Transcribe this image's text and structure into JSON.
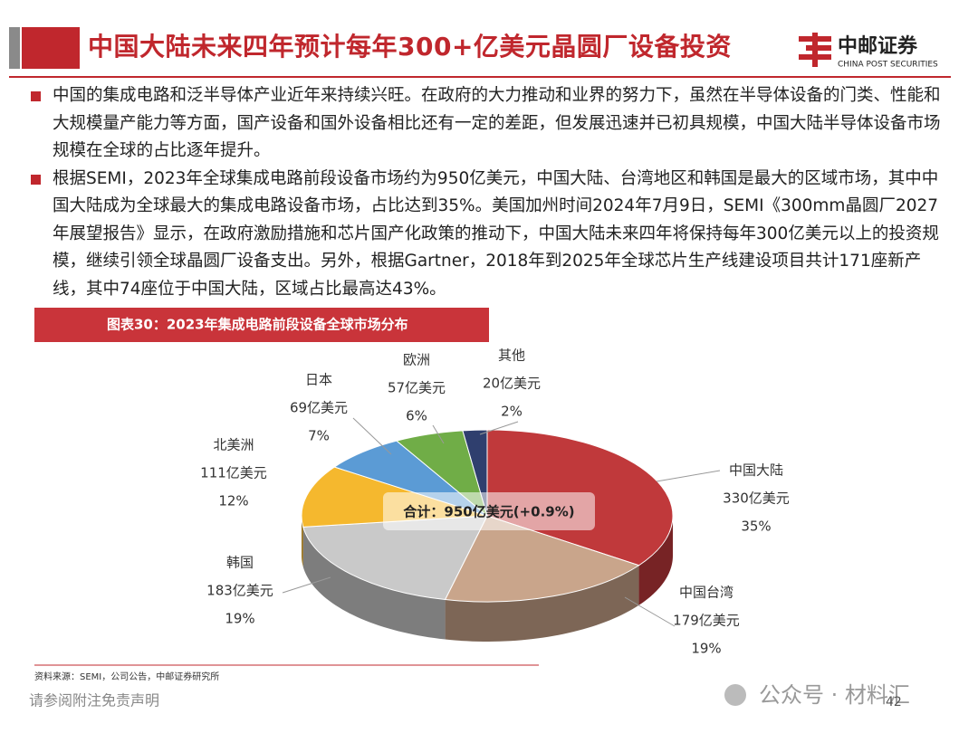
{
  "header": {
    "title": "中国大陆未来四年预计每年300+亿美元晶圆厂设备投资",
    "logo_cn": "中邮证券",
    "logo_en": "CHINA POST SECURITIES"
  },
  "bullets": [
    "中国的集成电路和泛半导体产业近年来持续兴旺。在政府的大力推动和业界的努力下，虽然在半导体设备的门类、性能和大规模量产能力等方面，国产设备和国外设备相比还有一定的差距，但发展迅速并已初具规模，中国大陆半导体设备市场规模在全球的占比逐年提升。",
    "根据SEMI，2023年全球集成电路前段设备市场约为950亿美元，中国大陆、台湾地区和韩国是最大的区域市场，其中中国大陆成为全球最大的集成电路设备市场，占比达到35%。美国加州时间2024年7月9日，SEMI《300mm晶圆厂2027年展望报告》显示，在政府激励措施和芯片国产化政策的推动下，中国大陆未来四年将保持每年300亿美元以上的投资规模，继续引领全球晶圆厂设备支出。另外，根据Gartner，2018年到2025年全球芯片生产线建设项目共计171座新产线，其中74座位于中国大陆，区域占比最高达43%。"
  ],
  "chart_data": {
    "type": "pie",
    "title": "图表30：2023年集成电路前段设备全球市场分布",
    "categories": [
      "中国大陆",
      "中国台湾",
      "韩国",
      "北美洲",
      "日本",
      "欧洲",
      "其他"
    ],
    "values": [
      330,
      179,
      183,
      111,
      69,
      57,
      20
    ],
    "value_labels": [
      "330亿美元",
      "179亿美元",
      "183亿美元",
      "111亿美元",
      "69亿美元",
      "57亿美元",
      "20亿美元"
    ],
    "percent_labels": [
      "35%",
      "19%",
      "19%",
      "12%",
      "7%",
      "6%",
      "2%"
    ],
    "colors": [
      "#c0393b",
      "#c9a58b",
      "#c9c9c9",
      "#f5b82e",
      "#5b9bd5",
      "#70ad47",
      "#2f3f6e"
    ],
    "total_label": "合计：950亿美元(+0.9%)",
    "source": "资料来源：SEMI，公司公告，中邮证券研究所"
  },
  "footer": {
    "disclaimer": "请参阅附注免责声明",
    "page": 42,
    "watermark": "公众号 · 材料汇"
  }
}
